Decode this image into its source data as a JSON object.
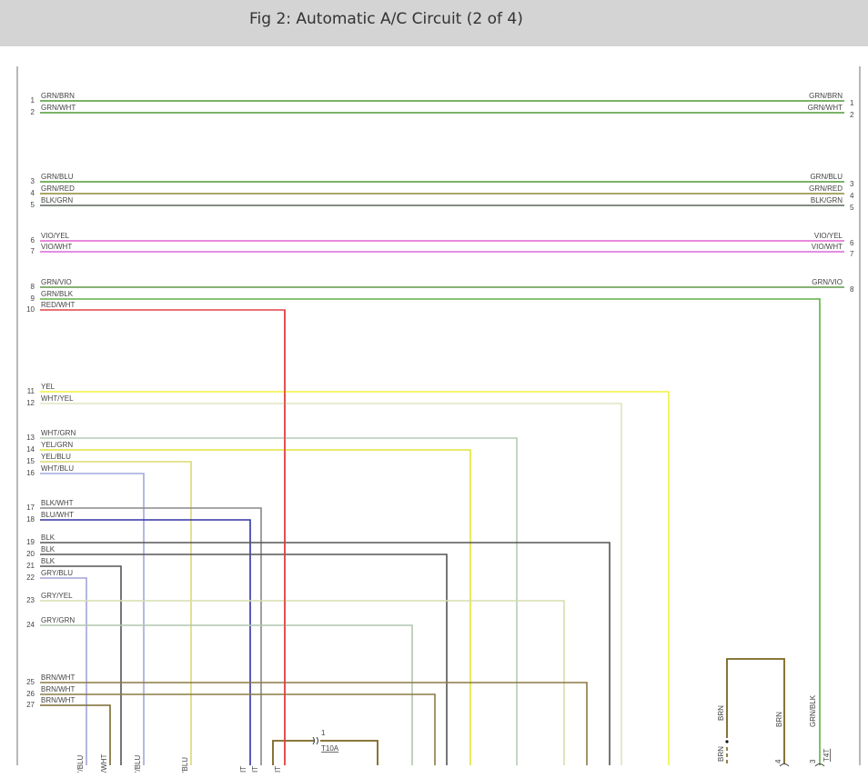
{
  "header": {
    "title": "Fig 2: Automatic A/C Circuit (2 of 4)"
  },
  "wires": [
    {
      "num": "1",
      "label": "GRN/BRN",
      "right_label": "GRN/BRN",
      "right_num": "1",
      "color": "#4f9a35"
    },
    {
      "num": "2",
      "label": "GRN/WHT",
      "right_label": "GRN/WHT",
      "right_num": "2",
      "color": "#4f9a35"
    },
    {
      "num": "3",
      "label": "GRN/BLU",
      "right_label": "GRN/BLU",
      "right_num": "3",
      "color": "#4f9a35"
    },
    {
      "num": "4",
      "label": "GRN/RED",
      "right_label": "GRN/RED",
      "right_num": "4",
      "color": "#8a8a2e"
    },
    {
      "num": "5",
      "label": "BLK/GRN",
      "right_label": "BLK/GRN",
      "right_num": "5",
      "color": "#5a665a"
    },
    {
      "num": "6",
      "label": "VIO/YEL",
      "right_label": "VIO/YEL",
      "right_num": "6",
      "color": "#e060d0"
    },
    {
      "num": "7",
      "label": "VIO/WHT",
      "right_label": "VIO/WHT",
      "right_num": "7",
      "color": "#d868d8"
    },
    {
      "num": "8",
      "label": "GRN/VIO",
      "right_label": "GRN/VIO",
      "right_num": "8",
      "color": "#5f9a45"
    },
    {
      "num": "9",
      "label": "GRN/BLK",
      "color": "#5fb045"
    },
    {
      "num": "10",
      "label": "RED/WHT",
      "color": "#e04444"
    },
    {
      "num": "11",
      "label": "YEL",
      "color": "#f2f040"
    },
    {
      "num": "12",
      "label": "WHT/YEL",
      "color": "#dde6c0"
    },
    {
      "num": "13",
      "label": "WHT/GRN",
      "color": "#b6ccb6"
    },
    {
      "num": "14",
      "label": "YEL/GRN",
      "color": "#e2e23a"
    },
    {
      "num": "15",
      "label": "YEL/BLU",
      "color": "#dada70"
    },
    {
      "num": "16",
      "label": "WHT/BLU",
      "color": "#a2a8de"
    },
    {
      "num": "17",
      "label": "BLK/WHT",
      "color": "#888888"
    },
    {
      "num": "18",
      "label": "BLU/WHT",
      "color": "#3434a4"
    },
    {
      "num": "19",
      "label": "BLK",
      "color": "#555555"
    },
    {
      "num": "20",
      "label": "BLK",
      "color": "#555555"
    },
    {
      "num": "21",
      "label": "BLK",
      "color": "#555555"
    },
    {
      "num": "22",
      "label": "GRY/BLU",
      "color": "#a4a4d8"
    },
    {
      "num": "23",
      "label": "GRY/YEL",
      "color": "#d6deae"
    },
    {
      "num": "24",
      "label": "GRY/GRN",
      "color": "#b0c6b0"
    },
    {
      "num": "25",
      "label": "BRN/WHT",
      "color": "#8a7a44"
    },
    {
      "num": "26",
      "label": "BRN/WHT",
      "color": "#8a7a44"
    },
    {
      "num": "27",
      "label": "BRN/WHT",
      "color": "#7a6a30"
    }
  ],
  "partial_labels": [
    "'/BLU",
    "/WHT",
    "'/BLU",
    "'BLU",
    "IT",
    "IT",
    "IT"
  ],
  "connector_t10a": {
    "pin": "1",
    "name": "T10A",
    "color": "#7a6420"
  },
  "brn_loop": {
    "left_label_top": "BRN",
    "left_label_bottom": "BRN",
    "right_label": "BRN",
    "right_pin": "4",
    "color": "#7a6420"
  },
  "connector_t4t": {
    "wire_label": "GRN/BLK",
    "pin": "3",
    "name": "T4T"
  }
}
